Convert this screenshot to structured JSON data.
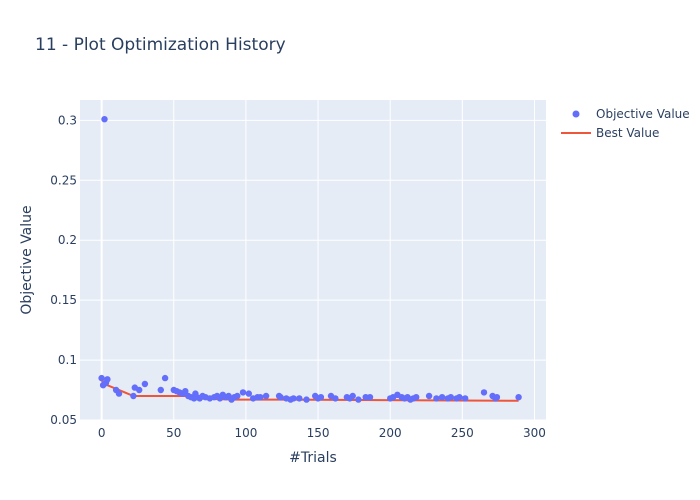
{
  "chart_data": {
    "type": "scatter",
    "title": "11 - Plot Optimization History",
    "xlabel": "#Trials",
    "ylabel": "Objective Value",
    "xlim": [
      -15,
      308
    ],
    "ylim": [
      0.05,
      0.317
    ],
    "x_ticks": [
      0,
      50,
      100,
      150,
      200,
      250,
      300
    ],
    "y_ticks": [
      0.05,
      0.1,
      0.15,
      0.2,
      0.25,
      0.3
    ],
    "x_tick_labels": [
      "0",
      "50",
      "100",
      "150",
      "200",
      "250",
      "300"
    ],
    "y_tick_labels": [
      "0.05",
      "0.1",
      "0.15",
      "0.2",
      "0.25",
      "0.3"
    ],
    "grid": true,
    "legend_position": "top-right",
    "series": [
      {
        "name": "Objective Value",
        "mode": "markers",
        "color": "#636efa",
        "x": [
          0,
          1,
          2,
          3,
          4,
          10,
          12,
          22,
          23,
          26,
          30,
          41,
          44,
          50,
          52,
          54,
          56,
          58,
          60,
          62,
          64,
          65,
          66,
          68,
          70,
          72,
          75,
          78,
          80,
          82,
          84,
          86,
          88,
          90,
          92,
          94,
          98,
          102,
          105,
          108,
          110,
          114,
          123,
          124,
          128,
          131,
          133,
          137,
          142,
          148,
          150,
          152,
          159,
          162,
          170,
          172,
          174,
          178,
          183,
          186,
          200,
          202,
          205,
          208,
          210,
          212,
          214,
          216,
          218,
          227,
          232,
          236,
          240,
          242,
          246,
          248,
          252,
          265,
          271,
          273,
          274,
          289
        ],
        "y": [
          0.085,
          0.079,
          0.301,
          0.081,
          0.084,
          0.075,
          0.072,
          0.07,
          0.077,
          0.075,
          0.08,
          0.075,
          0.085,
          0.075,
          0.074,
          0.073,
          0.072,
          0.074,
          0.07,
          0.069,
          0.068,
          0.072,
          0.069,
          0.068,
          0.07,
          0.069,
          0.068,
          0.069,
          0.07,
          0.068,
          0.071,
          0.069,
          0.07,
          0.067,
          0.069,
          0.07,
          0.073,
          0.072,
          0.068,
          0.069,
          0.069,
          0.07,
          0.07,
          0.069,
          0.068,
          0.067,
          0.068,
          0.068,
          0.067,
          0.07,
          0.068,
          0.069,
          0.07,
          0.068,
          0.069,
          0.068,
          0.07,
          0.067,
          0.069,
          0.069,
          0.068,
          0.069,
          0.071,
          0.069,
          0.068,
          0.069,
          0.067,
          0.068,
          0.069,
          0.07,
          0.068,
          0.069,
          0.068,
          0.069,
          0.068,
          0.069,
          0.068,
          0.073,
          0.07,
          0.068,
          0.069,
          0.069
        ]
      },
      {
        "name": "Best Value",
        "mode": "line",
        "color": "#ef553b",
        "x": [
          0,
          1,
          4,
          22,
          60,
          64,
          92,
          131,
          289
        ],
        "y": [
          0.085,
          0.079,
          0.079,
          0.07,
          0.07,
          0.068,
          0.067,
          0.067,
          0.066
        ]
      }
    ]
  }
}
